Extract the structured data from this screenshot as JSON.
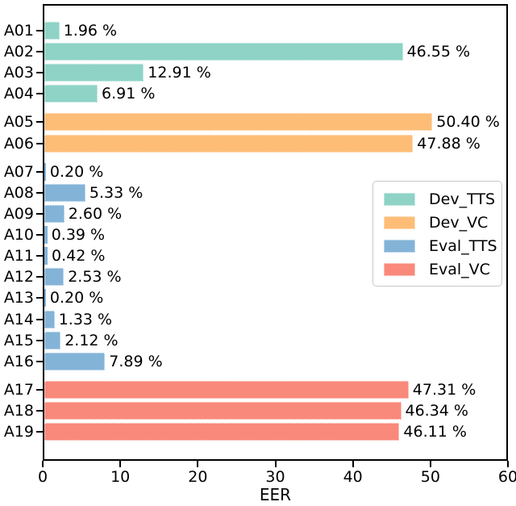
{
  "chart_data": {
    "type": "bar",
    "orientation": "horizontal",
    "title": "",
    "xlabel": "EER",
    "ylabel": "",
    "xlim": [
      0,
      60
    ],
    "xticks": [
      0,
      10,
      20,
      30,
      40,
      50,
      60
    ],
    "grid": false,
    "legend_position": "center-right",
    "series": [
      {
        "name": "Dev_TTS",
        "color": "#8ed3c6"
      },
      {
        "name": "Dev_VC",
        "color": "#fdbd77"
      },
      {
        "name": "Eval_TTS",
        "color": "#83b3d7"
      },
      {
        "name": "Eval_VC",
        "color": "#f9897b"
      }
    ],
    "bars": [
      {
        "category": "A01",
        "series": "Dev_TTS",
        "value": 1.96,
        "label": "1.96 %"
      },
      {
        "category": "A02",
        "series": "Dev_TTS",
        "value": 46.55,
        "label": "46.55 %"
      },
      {
        "category": "A03",
        "series": "Dev_TTS",
        "value": 12.91,
        "label": "12.91 %"
      },
      {
        "category": "A04",
        "series": "Dev_TTS",
        "value": 6.91,
        "label": "6.91 %"
      },
      {
        "category": "A05",
        "series": "Dev_VC",
        "value": 50.4,
        "label": "50.40 %"
      },
      {
        "category": "A06",
        "series": "Dev_VC",
        "value": 47.88,
        "label": "47.88 %"
      },
      {
        "category": "A07",
        "series": "Eval_TTS",
        "value": 0.2,
        "label": "0.20 %"
      },
      {
        "category": "A08",
        "series": "Eval_TTS",
        "value": 5.33,
        "label": "5.33 %"
      },
      {
        "category": "A09",
        "series": "Eval_TTS",
        "value": 2.6,
        "label": "2.60 %"
      },
      {
        "category": "A10",
        "series": "Eval_TTS",
        "value": 0.39,
        "label": "0.39 %"
      },
      {
        "category": "A11",
        "series": "Eval_TTS",
        "value": 0.42,
        "label": "0.42 %"
      },
      {
        "category": "A12",
        "series": "Eval_TTS",
        "value": 2.53,
        "label": "2.53 %"
      },
      {
        "category": "A13",
        "series": "Eval_TTS",
        "value": 0.2,
        "label": "0.20 %"
      },
      {
        "category": "A14",
        "series": "Eval_TTS",
        "value": 1.33,
        "label": "1.33 %"
      },
      {
        "category": "A15",
        "series": "Eval_TTS",
        "value": 2.12,
        "label": "2.12 %"
      },
      {
        "category": "A16",
        "series": "Eval_TTS",
        "value": 7.89,
        "label": "7.89 %"
      },
      {
        "category": "A17",
        "series": "Eval_VC",
        "value": 47.31,
        "label": "47.31 %"
      },
      {
        "category": "A18",
        "series": "Eval_VC",
        "value": 46.34,
        "label": "46.34 %"
      },
      {
        "category": "A19",
        "series": "Eval_VC",
        "value": 46.11,
        "label": "46.11 %"
      }
    ]
  }
}
